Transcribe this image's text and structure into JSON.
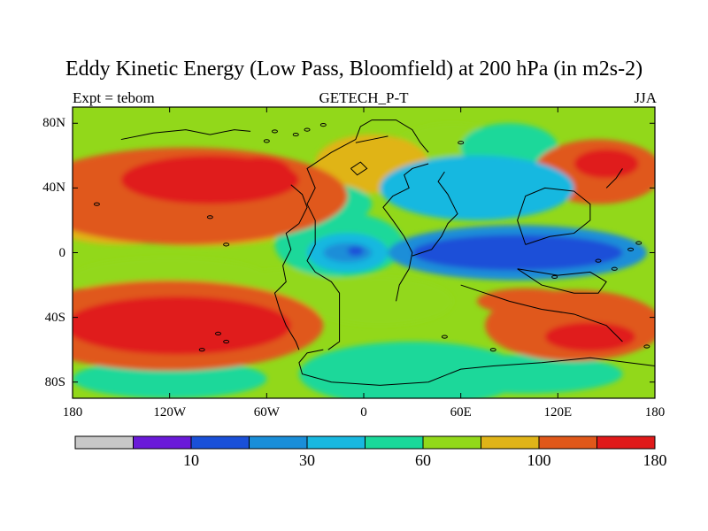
{
  "title": "Eddy Kinetic Energy (Low Pass, Bloomfield) at 200 hPa (in m2s-2)",
  "subtitle_left": "Expt = tebom",
  "subtitle_center": "GETECH_P-T",
  "subtitle_right": "JJA",
  "x_ticks": [
    {
      "lon": -180,
      "label": "180"
    },
    {
      "lon": -120,
      "label": "120W"
    },
    {
      "lon": -60,
      "label": "60W"
    },
    {
      "lon": 0,
      "label": "0"
    },
    {
      "lon": 60,
      "label": "60E"
    },
    {
      "lon": 120,
      "label": "120E"
    },
    {
      "lon": 180,
      "label": "180"
    }
  ],
  "y_ticks": [
    {
      "lat": 80,
      "label": "80N"
    },
    {
      "lat": 40,
      "label": "40N"
    },
    {
      "lat": 0,
      "label": "0"
    },
    {
      "lat": -40,
      "label": "40S"
    },
    {
      "lat": -80,
      "label": "80S"
    }
  ],
  "colorbar": {
    "colors": [
      "#c8c8c8",
      "#6a1ad8",
      "#1a50d8",
      "#1a8ed8",
      "#18b8e0",
      "#1ad89a",
      "#92d81a",
      "#e0b418",
      "#e0581a",
      "#e01a1a"
    ],
    "labels": [
      {
        "index": 2,
        "text": "10"
      },
      {
        "index": 4,
        "text": "30"
      },
      {
        "index": 6,
        "text": "60"
      },
      {
        "index": 8,
        "text": "100"
      },
      {
        "index": 10,
        "text": "180"
      }
    ]
  },
  "field_blobs": [
    {
      "lon": -110,
      "lat": 35,
      "rx": 100,
      "ry": 30,
      "level": 8
    },
    {
      "lon": -95,
      "lat": 45,
      "rx": 55,
      "ry": 15,
      "level": 9
    },
    {
      "lon": -65,
      "lat": 50,
      "rx": 20,
      "ry": 9,
      "level": 9
    },
    {
      "lon": 145,
      "lat": 50,
      "rx": 40,
      "ry": 20,
      "level": 8
    },
    {
      "lon": 150,
      "lat": 55,
      "rx": 20,
      "ry": 9,
      "level": 9
    },
    {
      "lon": -120,
      "lat": -45,
      "rx": 95,
      "ry": 28,
      "level": 8
    },
    {
      "lon": -115,
      "lat": -45,
      "rx": 70,
      "ry": 18,
      "level": 9
    },
    {
      "lon": 130,
      "lat": -45,
      "rx": 55,
      "ry": 22,
      "level": 8
    },
    {
      "lon": 140,
      "lat": -52,
      "rx": 28,
      "ry": 9,
      "level": 9
    },
    {
      "lon": 100,
      "lat": -30,
      "rx": 30,
      "ry": 8,
      "level": 8
    },
    {
      "lon": 5,
      "lat": 55,
      "rx": 35,
      "ry": 18,
      "level": 7
    },
    {
      "lon": -150,
      "lat": 15,
      "rx": 40,
      "ry": 10,
      "level": 7
    },
    {
      "lon": -100,
      "lat": 12,
      "rx": 50,
      "ry": 8,
      "level": 7
    },
    {
      "lon": -60,
      "lat": 20,
      "rx": 15,
      "ry": 10,
      "level": 6
    },
    {
      "lon": -20,
      "lat": 30,
      "rx": 25,
      "ry": 12,
      "level": 5
    },
    {
      "lon": -15,
      "lat": 5,
      "rx": 40,
      "ry": 20,
      "level": 5
    },
    {
      "lon": 10,
      "lat": 50,
      "rx": 25,
      "ry": 15,
      "level": 6
    },
    {
      "lon": 55,
      "lat": 60,
      "rx": 40,
      "ry": 20,
      "level": 6
    },
    {
      "lon": 70,
      "lat": 40,
      "rx": 60,
      "ry": 20,
      "level": 4
    },
    {
      "lon": 90,
      "lat": 65,
      "rx": 30,
      "ry": 15,
      "level": 5
    },
    {
      "lon": -45,
      "lat": -25,
      "rx": 40,
      "ry": 15,
      "level": 6
    },
    {
      "lon": -120,
      "lat": -15,
      "rx": 60,
      "ry": 12,
      "level": 6
    },
    {
      "lon": 10,
      "lat": -30,
      "rx": 45,
      "ry": 15,
      "level": 6
    },
    {
      "lon": 30,
      "lat": -75,
      "rx": 70,
      "ry": 20,
      "level": 5
    },
    {
      "lon": -120,
      "lat": -78,
      "rx": 60,
      "ry": 12,
      "level": 5
    },
    {
      "lon": 100,
      "lat": -75,
      "rx": 60,
      "ry": 12,
      "level": 5
    },
    {
      "lon": 95,
      "lat": 0,
      "rx": 80,
      "ry": 17,
      "level": 3
    },
    {
      "lon": 95,
      "lat": 0,
      "rx": 65,
      "ry": 11,
      "level": 2
    },
    {
      "lon": -10,
      "lat": 0,
      "rx": 25,
      "ry": 12,
      "level": 4
    },
    {
      "lon": -10,
      "lat": 0,
      "rx": 15,
      "ry": 6,
      "level": 3
    },
    {
      "lon": -5,
      "lat": 1,
      "rx": 5,
      "ry": 3,
      "level": 2
    }
  ],
  "coastlines": [
    [
      [
        -22,
        -60
      ],
      [
        -15,
        -55
      ],
      [
        -15,
        -40
      ],
      [
        -15,
        -25
      ],
      [
        -20,
        -18
      ],
      [
        -30,
        -12
      ],
      [
        -35,
        -5
      ],
      [
        -30,
        5
      ],
      [
        -30,
        20
      ],
      [
        -35,
        30
      ],
      [
        -30,
        40
      ],
      [
        -35,
        52
      ],
      [
        -20,
        62
      ],
      [
        -5,
        70
      ],
      [
        -2,
        78
      ],
      [
        5,
        82
      ],
      [
        20,
        82
      ],
      [
        30,
        76
      ],
      [
        35,
        68
      ],
      [
        40,
        62
      ]
    ],
    [
      [
        -40,
        -60
      ],
      [
        -42,
        -55
      ],
      [
        -48,
        -45
      ],
      [
        -52,
        -35
      ],
      [
        -55,
        -25
      ],
      [
        -48,
        -18
      ],
      [
        -50,
        -8
      ],
      [
        -45,
        2
      ],
      [
        -48,
        12
      ],
      [
        -40,
        18
      ],
      [
        -35,
        28
      ],
      [
        -38,
        36
      ],
      [
        -45,
        42
      ]
    ],
    [
      [
        -25,
        -60
      ],
      [
        -35,
        -62
      ],
      [
        -40,
        -68
      ],
      [
        -38,
        -75
      ],
      [
        -20,
        -80
      ],
      [
        10,
        -82
      ],
      [
        40,
        -80
      ],
      [
        60,
        -72
      ],
      [
        80,
        -70
      ],
      [
        110,
        -68
      ],
      [
        140,
        -65
      ],
      [
        180,
        -70
      ]
    ],
    [
      [
        20,
        -30
      ],
      [
        22,
        -20
      ],
      [
        28,
        -10
      ],
      [
        30,
        0
      ],
      [
        25,
        10
      ],
      [
        18,
        20
      ],
      [
        12,
        28
      ],
      [
        18,
        35
      ],
      [
        28,
        40
      ],
      [
        25,
        48
      ],
      [
        30,
        52
      ],
      [
        40,
        55
      ]
    ],
    [
      [
        30,
        -2
      ],
      [
        42,
        2
      ],
      [
        48,
        10
      ],
      [
        52,
        18
      ],
      [
        58,
        24
      ],
      [
        55,
        30
      ],
      [
        52,
        36
      ],
      [
        46,
        44
      ],
      [
        50,
        50
      ]
    ],
    [
      [
        60,
        -20
      ],
      [
        75,
        -25
      ],
      [
        90,
        -30
      ],
      [
        110,
        -35
      ],
      [
        130,
        -38
      ],
      [
        150,
        -45
      ],
      [
        160,
        -55
      ]
    ],
    [
      [
        95,
        -10
      ],
      [
        120,
        -14
      ],
      [
        140,
        -12
      ],
      [
        150,
        -18
      ],
      [
        145,
        -25
      ],
      [
        130,
        -25
      ],
      [
        110,
        -20
      ],
      [
        95,
        -10
      ]
    ],
    [
      [
        100,
        5
      ],
      [
        115,
        10
      ],
      [
        130,
        12
      ],
      [
        140,
        20
      ],
      [
        140,
        30
      ],
      [
        130,
        38
      ],
      [
        112,
        40
      ],
      [
        100,
        35
      ],
      [
        95,
        20
      ],
      [
        100,
        5
      ]
    ],
    [
      [
        150,
        40
      ],
      [
        156,
        46
      ],
      [
        160,
        52
      ]
    ],
    [
      [
        -150,
        70
      ],
      [
        -130,
        74
      ],
      [
        -110,
        76
      ],
      [
        -95,
        73
      ],
      [
        -80,
        76
      ],
      [
        -70,
        75
      ]
    ],
    [
      [
        -8,
        52
      ],
      [
        -2,
        56
      ],
      [
        2,
        52
      ],
      [
        -4,
        48
      ],
      [
        -8,
        52
      ]
    ],
    [
      [
        -5,
        68
      ],
      [
        5,
        70
      ],
      [
        15,
        72
      ]
    ]
  ],
  "islands": [
    {
      "lon": -42,
      "lat": 73
    },
    {
      "lon": -35,
      "lat": 76
    },
    {
      "lon": -25,
      "lat": 79
    },
    {
      "lon": -55,
      "lat": 75
    },
    {
      "lon": -60,
      "lat": 69
    },
    {
      "lon": 165,
      "lat": 2
    },
    {
      "lon": 170,
      "lat": 6
    },
    {
      "lon": 118,
      "lat": -15
    },
    {
      "lon": 155,
      "lat": -10
    },
    {
      "lon": 145,
      "lat": -5
    },
    {
      "lon": -90,
      "lat": -50
    },
    {
      "lon": -85,
      "lat": -55
    },
    {
      "lon": -100,
      "lat": -60
    },
    {
      "lon": 175,
      "lat": -58
    },
    {
      "lon": 50,
      "lat": -52
    },
    {
      "lon": 80,
      "lat": -60
    },
    {
      "lon": -95,
      "lat": 22
    },
    {
      "lon": -85,
      "lat": 5
    },
    {
      "lon": -165,
      "lat": 30
    },
    {
      "lon": 60,
      "lat": 68
    }
  ]
}
